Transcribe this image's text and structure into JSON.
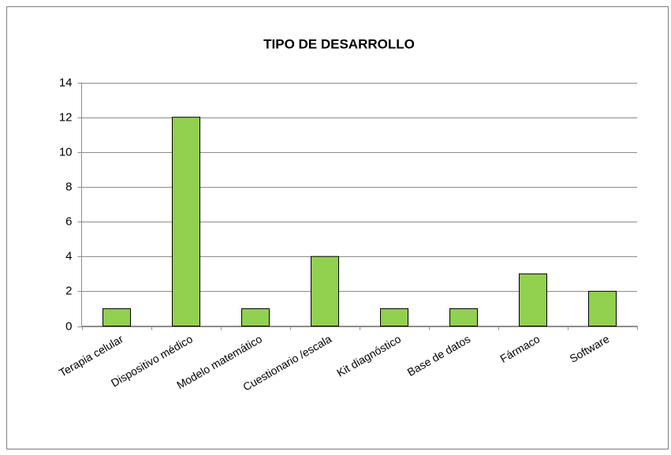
{
  "chart_data": {
    "type": "bar",
    "title": "TIPO DE DESARROLLO",
    "categories": [
      "Terapia celular",
      "Dispositivo médico",
      "Modelo matemático",
      "Cuestionario /escala",
      "Kit diagnóstico",
      "Base de datos",
      "Fármaco",
      "Software"
    ],
    "values": [
      1,
      12,
      1,
      4,
      1,
      1,
      3,
      2
    ],
    "color": "#92d050",
    "ylim": [
      0,
      14
    ],
    "yticks": [
      0,
      2,
      4,
      6,
      8,
      10,
      12,
      14
    ],
    "grid": true
  }
}
